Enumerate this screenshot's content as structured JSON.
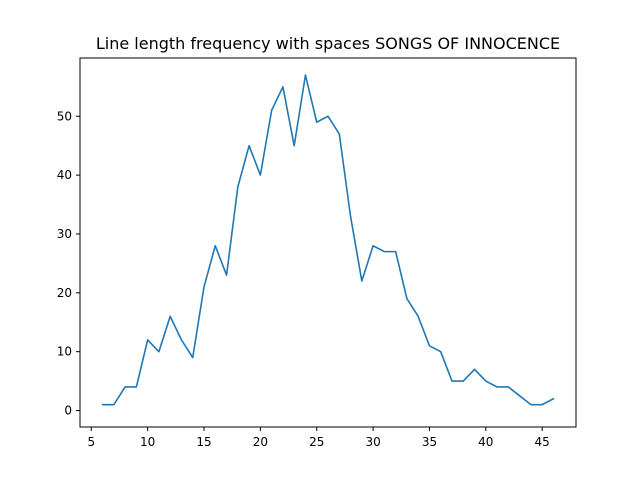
{
  "chart_data": {
    "type": "line",
    "title": "Line length frequency with spaces SONGS OF INNOCENCE",
    "xlabel": "",
    "ylabel": "",
    "xlim": [
      4.0,
      48.0
    ],
    "ylim": [
      -2.8,
      59.9
    ],
    "xticks": [
      5,
      10,
      15,
      20,
      25,
      30,
      35,
      40,
      45
    ],
    "yticks": [
      0,
      10,
      20,
      30,
      40,
      50
    ],
    "grid": false,
    "series": [
      {
        "color": "#1f77b4",
        "x": [
          6,
          7,
          8,
          9,
          10,
          11,
          12,
          13,
          14,
          15,
          16,
          17,
          18,
          19,
          20,
          21,
          22,
          23,
          24,
          25,
          26,
          27,
          28,
          29,
          30,
          31,
          32,
          33,
          34,
          35,
          36,
          37,
          38,
          39,
          40,
          41,
          42,
          43,
          44,
          45,
          46
        ],
        "y": [
          1,
          1,
          4,
          4,
          12,
          10,
          16,
          12,
          9,
          21,
          28,
          23,
          38,
          45,
          40,
          51,
          55,
          45,
          57,
          49,
          50,
          47,
          33,
          22,
          28,
          27,
          27,
          19,
          16,
          11,
          10,
          5,
          5,
          7,
          5,
          4,
          4,
          2.5,
          1,
          1,
          2
        ]
      }
    ]
  }
}
